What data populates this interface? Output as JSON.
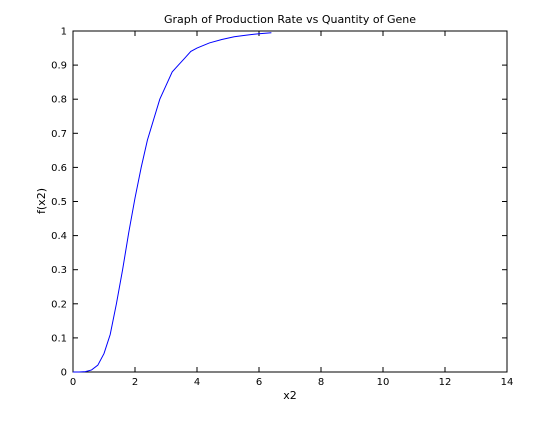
{
  "chart_data": {
    "type": "line",
    "title": "Graph of Production Rate vs Quantity of Gene",
    "xlabel": "x2",
    "ylabel": "f(x2)",
    "xlim": [
      0,
      14
    ],
    "ylim": [
      0,
      1
    ],
    "xticks": [
      0,
      2,
      4,
      6,
      8,
      10,
      12,
      14
    ],
    "yticks": [
      0,
      0.1,
      0.2,
      0.3,
      0.4,
      0.5,
      0.6,
      0.7,
      0.8,
      0.9,
      1
    ],
    "xtick_labels": [
      "0",
      "2",
      "4",
      "6",
      "8",
      "10",
      "12",
      "14"
    ],
    "ytick_labels": [
      "0",
      "0.1",
      "0.2",
      "0.3",
      "0.4",
      "0.5",
      "0.6",
      "0.7",
      "0.8",
      "0.9",
      "1"
    ],
    "grid": false,
    "line_color": "#0000ff",
    "series": [
      {
        "x": [
          0,
          0.2,
          0.4,
          0.6,
          0.8,
          1.0,
          1.2,
          1.4,
          1.6,
          1.8,
          2.0,
          2.2,
          2.4,
          2.6,
          2.8,
          3.0,
          3.2,
          3.4,
          3.6,
          3.8,
          4.0,
          4.4,
          4.8,
          5.2,
          5.6,
          6.0,
          6.4
        ],
        "y": [
          0,
          0.0,
          0.001,
          0.006,
          0.02,
          0.054,
          0.11,
          0.2,
          0.3,
          0.41,
          0.51,
          0.6,
          0.68,
          0.74,
          0.8,
          0.84,
          0.88,
          0.9,
          0.92,
          0.94,
          0.95,
          0.965,
          0.975,
          0.983,
          0.988,
          0.992,
          0.995
        ]
      }
    ]
  }
}
